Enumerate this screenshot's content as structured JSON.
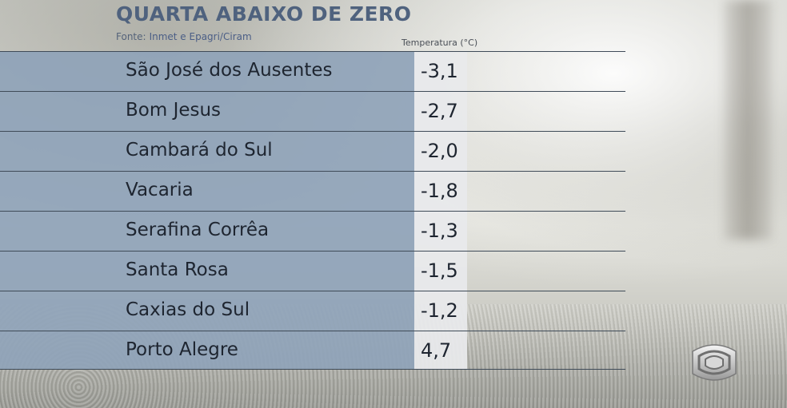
{
  "header": {
    "title": "QUARTA ABAIXO DE ZERO",
    "source_label": "Fonte:",
    "source_names": "Inmet e Epagri/Ciram",
    "column_header": "Temperatura (°C)"
  },
  "rows": [
    {
      "city": "São José dos Ausentes",
      "temp": "-3,1"
    },
    {
      "city": "Bom Jesus",
      "temp": "-2,7"
    },
    {
      "city": "Cambará do Sul",
      "temp": "-2,0"
    },
    {
      "city": "Vacaria",
      "temp": "-1,8"
    },
    {
      "city": "Serafina Corrêa",
      "temp": "-1,3"
    },
    {
      "city": "Santa Rosa",
      "temp": "-1,5"
    },
    {
      "city": "Caxias do Sul",
      "temp": "-1,2"
    },
    {
      "city": "Porto Alegre",
      "temp": "4,7"
    }
  ],
  "colors": {
    "title": "#4f627e",
    "panel": "#8fa3b8",
    "value_column": "#e8eaec"
  },
  "logo": {
    "icon": "broadcaster-logo-icon"
  }
}
